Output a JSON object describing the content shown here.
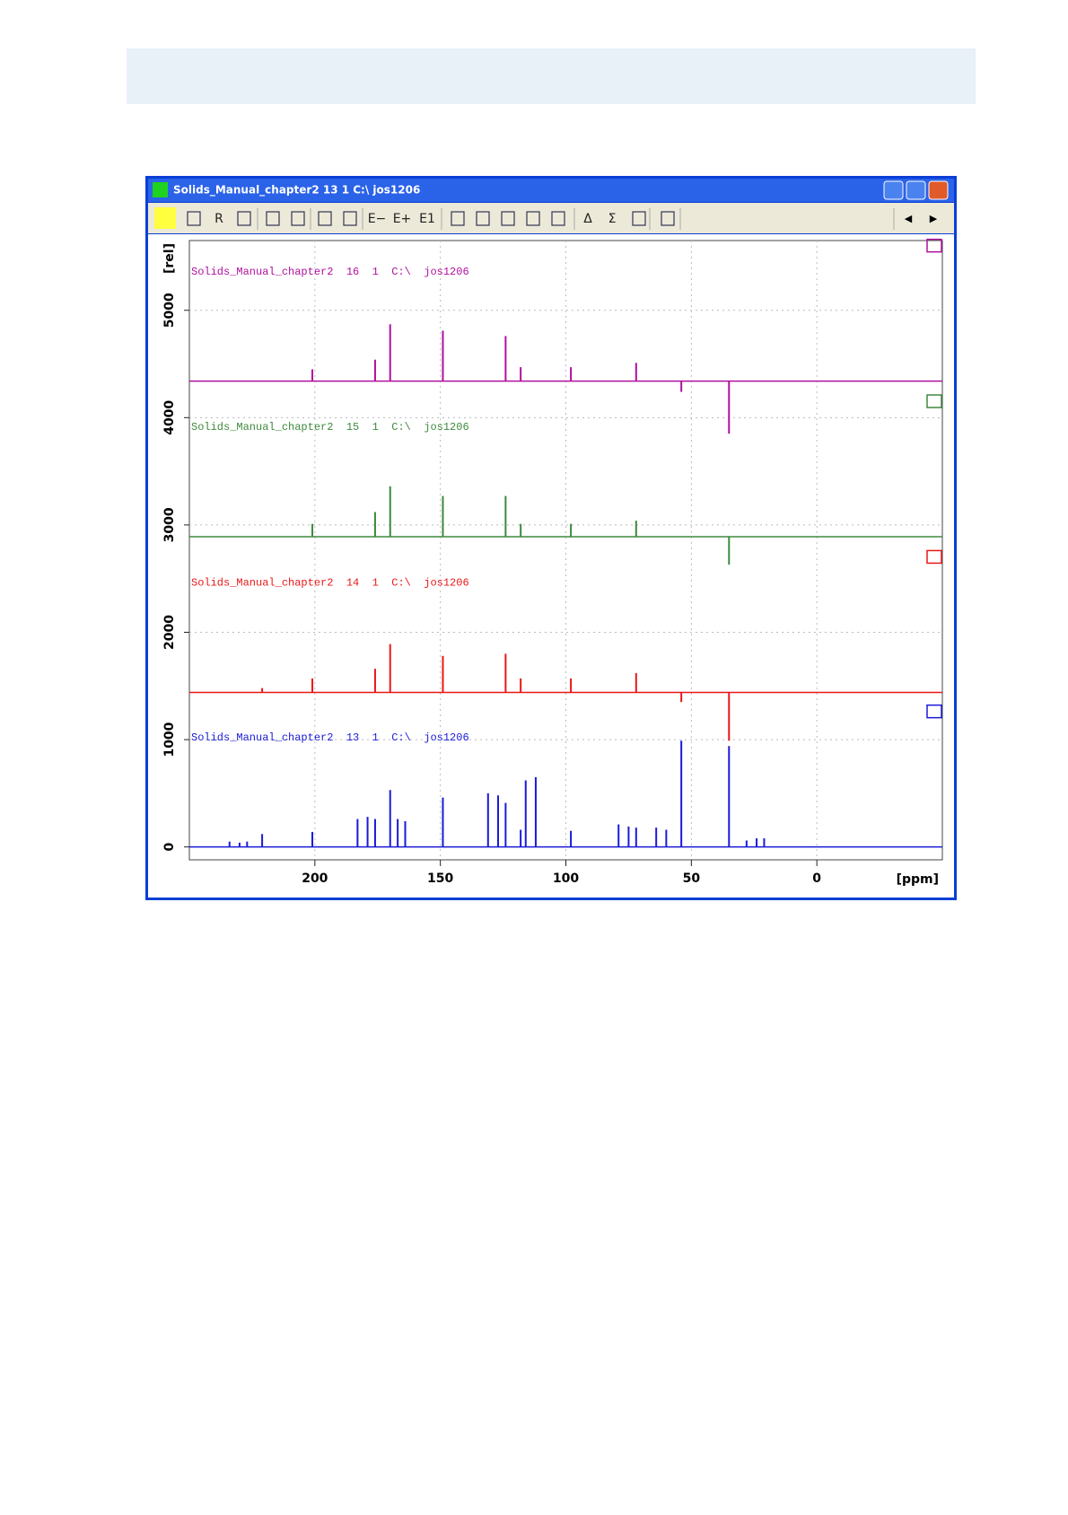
{
  "window": {
    "title": "Solids_Manual_chapter2  13  1  C:\\ jos1206",
    "toolbar": [
      "R",
      "E−",
      "E+",
      "E1",
      "Δ",
      "Σ"
    ]
  },
  "chart_data": {
    "type": "stick",
    "xlabel": "[ppm]",
    "ylabel": "[rel]",
    "xlim": [
      250,
      -50
    ],
    "xticks": [
      200,
      150,
      100,
      50,
      0
    ],
    "ylim": [
      -120,
      5650
    ],
    "yticks": [
      0,
      1000,
      2000,
      3000,
      4000,
      5000
    ],
    "grid": true,
    "series": [
      {
        "name": "Solids_Manual_chapter2  16  1  C:\\  jos1206",
        "color": "#b0109e",
        "baseline": 4340,
        "x": [
          201,
          176,
          170,
          149,
          124,
          118,
          98,
          72,
          54,
          35
        ],
        "values": [
          4450,
          4540,
          4870,
          4810,
          4760,
          4470,
          4470,
          4510,
          4240,
          3850
        ]
      },
      {
        "name": "Solids_Manual_chapter2  15  1  C:\\  jos1206",
        "color": "#3d8a3d",
        "baseline": 2890,
        "x": [
          201,
          176,
          170,
          149,
          124,
          118,
          98,
          72,
          35
        ],
        "values": [
          3010,
          3120,
          3360,
          3270,
          3270,
          3010,
          3010,
          3040,
          2630
        ]
      },
      {
        "name": "Solids_Manual_chapter2  14  1  C:\\  jos1206",
        "color": "#e81818",
        "baseline": 1440,
        "x": [
          221,
          201,
          176,
          170,
          149,
          124,
          118,
          98,
          72,
          54,
          35
        ],
        "values": [
          1480,
          1570,
          1660,
          1890,
          1780,
          1800,
          1570,
          1570,
          1620,
          1350,
          990
        ]
      },
      {
        "name": "Solids_Manual_chapter2  13  1  C:\\  jos1206",
        "color": "#1a1ad8",
        "baseline": 0,
        "x": [
          234,
          230,
          227,
          221,
          201,
          183,
          179,
          176,
          170,
          167,
          164,
          149,
          131,
          127,
          124,
          118,
          116,
          112,
          98,
          79,
          75,
          72,
          64,
          60,
          54,
          35,
          28,
          24,
          21
        ],
        "values": [
          50,
          40,
          50,
          120,
          140,
          260,
          280,
          260,
          530,
          260,
          240,
          460,
          500,
          480,
          410,
          160,
          620,
          650,
          150,
          210,
          190,
          180,
          180,
          160,
          990,
          940,
          60,
          80,
          80
        ]
      }
    ]
  }
}
